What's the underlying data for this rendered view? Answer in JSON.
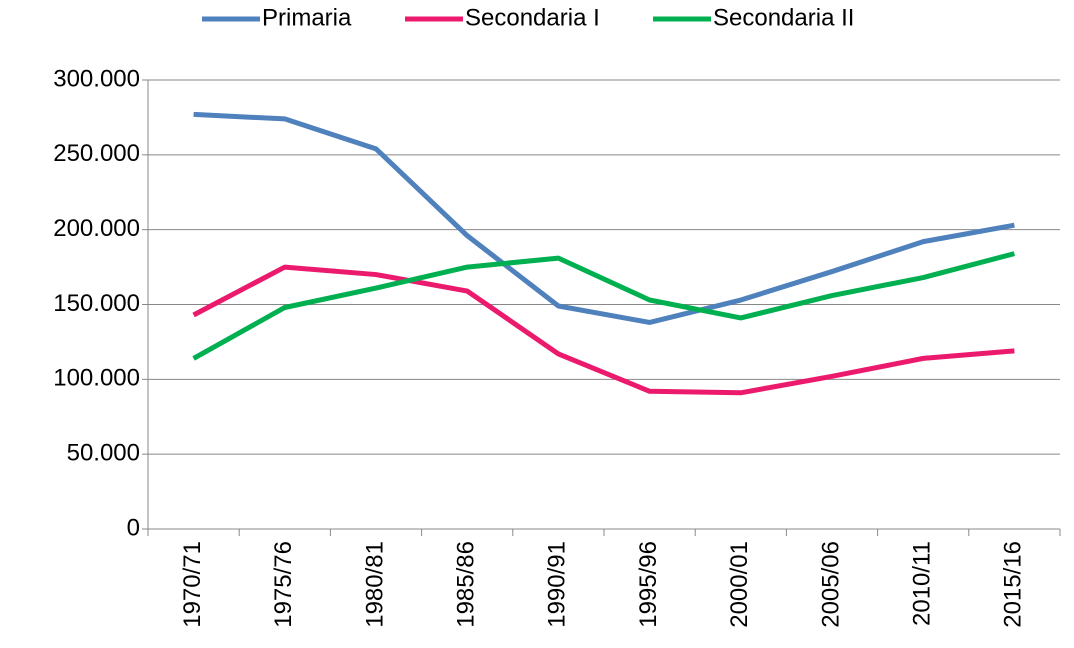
{
  "chart_data": {
    "type": "line",
    "categories": [
      "1970/71",
      "1975/76",
      "1980/81",
      "1985/86",
      "1990/91",
      "1995/96",
      "2000/01",
      "2005/06",
      "2010/11",
      "2015/16"
    ],
    "series": [
      {
        "name": "Primaria",
        "color": "#4f81bd",
        "values": [
          277000,
          274000,
          254000,
          196000,
          149000,
          138000,
          153000,
          172000,
          192000,
          203000
        ]
      },
      {
        "name": "Secondaria I",
        "color": "#ec1a6c",
        "values": [
          143000,
          175000,
          170000,
          159000,
          117000,
          92000,
          91000,
          102000,
          114000,
          119000
        ]
      },
      {
        "name": "Secondaria II",
        "color": "#00b050",
        "values": [
          114000,
          148000,
          161000,
          175000,
          181000,
          153000,
          141000,
          156000,
          168000,
          184000
        ]
      }
    ],
    "ylim": [
      0,
      300000
    ],
    "yticks": [
      0,
      {
        "value": 50000,
        "label": "50.000"
      },
      {
        "value": 100000,
        "label": "100.000"
      },
      {
        "value": 150000,
        "label": "150.000"
      },
      {
        "value": 200000,
        "label": "200.000"
      },
      {
        "value": 250000,
        "label": "250.000"
      },
      {
        "value": 300000,
        "label": "300.000"
      }
    ],
    "grid": true,
    "legend": "top"
  }
}
